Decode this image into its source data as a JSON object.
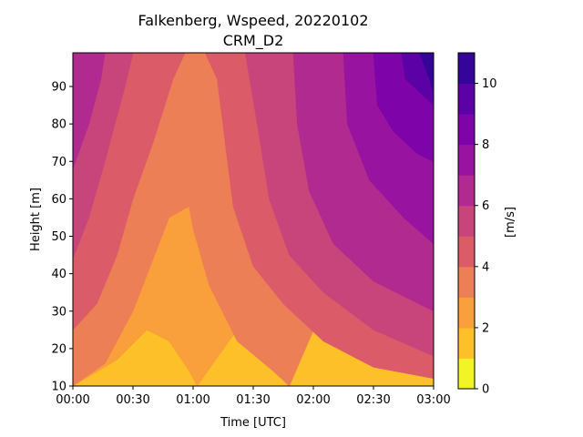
{
  "chart_data": {
    "type": "heatmap",
    "subtype": "filled-contour",
    "title": "Falkenberg, Wspeed, 20220102",
    "subtitle": "CRM_D2",
    "xlabel": "Time [UTC]",
    "ylabel": "Height [m]",
    "colorbar_label": "[m/s]",
    "x_tick_labels": [
      "00:00",
      "00:30",
      "01:00",
      "01:30",
      "02:00",
      "02:30",
      "03:00"
    ],
    "x_ticks_minutes": [
      0,
      30,
      60,
      90,
      120,
      150,
      180
    ],
    "xlim_minutes": [
      0,
      180
    ],
    "y_ticks": [
      10,
      20,
      30,
      40,
      50,
      60,
      70,
      80,
      90
    ],
    "ylim": [
      10,
      99
    ],
    "colorbar_ticks": [
      0,
      2,
      4,
      6,
      8,
      10
    ],
    "levels": [
      0,
      1,
      2,
      3,
      4,
      5,
      6,
      7,
      8,
      9,
      10,
      11
    ],
    "level_colors": [
      "#f1f525",
      "#fec029",
      "#f99f3b",
      "#ec7f55",
      "#db5c68",
      "#c8457b",
      "#b12a90",
      "#9814a0",
      "#7e03a8",
      "#5c01a6",
      "#350498"
    ],
    "colormap": "plasma_r",
    "grid": false,
    "fields": [
      {
        "level": 2,
        "boundary": [
          [
            0,
            10
          ],
          [
            22,
            17
          ],
          [
            37,
            25
          ],
          [
            48,
            22
          ],
          [
            58,
            14
          ],
          [
            62,
            10
          ]
        ]
      },
      {
        "level": 3,
        "boundary": [
          [
            0,
            10
          ],
          [
            16,
            16
          ],
          [
            30,
            30
          ],
          [
            48,
            55
          ],
          [
            58,
            58
          ],
          [
            60,
            52
          ],
          [
            68,
            37
          ],
          [
            82,
            22
          ],
          [
            100,
            14
          ],
          [
            108,
            10
          ]
        ]
      },
      {
        "level": 4,
        "boundary": [
          [
            0,
            25
          ],
          [
            12,
            32
          ],
          [
            22,
            45
          ],
          [
            30,
            60
          ],
          [
            40,
            75
          ],
          [
            50,
            92
          ],
          [
            56,
            99
          ],
          [
            66,
            99
          ],
          [
            72,
            92
          ],
          [
            76,
            75
          ],
          [
            80,
            58
          ],
          [
            90,
            42
          ],
          [
            105,
            32
          ],
          [
            125,
            22
          ],
          [
            150,
            15
          ],
          [
            180,
            12
          ]
        ]
      },
      {
        "level": 5,
        "boundary": [
          [
            0,
            44
          ],
          [
            8,
            55
          ],
          [
            16,
            70
          ],
          [
            26,
            90
          ],
          [
            30,
            99
          ],
          [
            86,
            99
          ],
          [
            92,
            80
          ],
          [
            98,
            60
          ],
          [
            108,
            45
          ],
          [
            125,
            35
          ],
          [
            150,
            25
          ],
          [
            180,
            18
          ]
        ]
      },
      {
        "level": 6,
        "boundary": [
          [
            0,
            68
          ],
          [
            8,
            80
          ],
          [
            14,
            92
          ],
          [
            16,
            99
          ],
          [
            110,
            99
          ],
          [
            112,
            80
          ],
          [
            118,
            62
          ],
          [
            130,
            48
          ],
          [
            150,
            38
          ],
          [
            180,
            30
          ]
        ]
      },
      {
        "level": 7,
        "boundary": [
          [
            135,
            99
          ],
          [
            137,
            80
          ],
          [
            148,
            65
          ],
          [
            165,
            55
          ],
          [
            180,
            48
          ]
        ]
      },
      {
        "level": 8,
        "boundary": [
          [
            150,
            99
          ],
          [
            152,
            85
          ],
          [
            160,
            78
          ],
          [
            172,
            72
          ],
          [
            180,
            70
          ]
        ]
      },
      {
        "level": 9,
        "boundary": [
          [
            164,
            99
          ],
          [
            166,
            92
          ],
          [
            174,
            88
          ],
          [
            180,
            85
          ]
        ]
      },
      {
        "level": 10,
        "boundary": [
          [
            173,
            99
          ],
          [
            178,
            92
          ],
          [
            180,
            88
          ]
        ]
      }
    ]
  }
}
